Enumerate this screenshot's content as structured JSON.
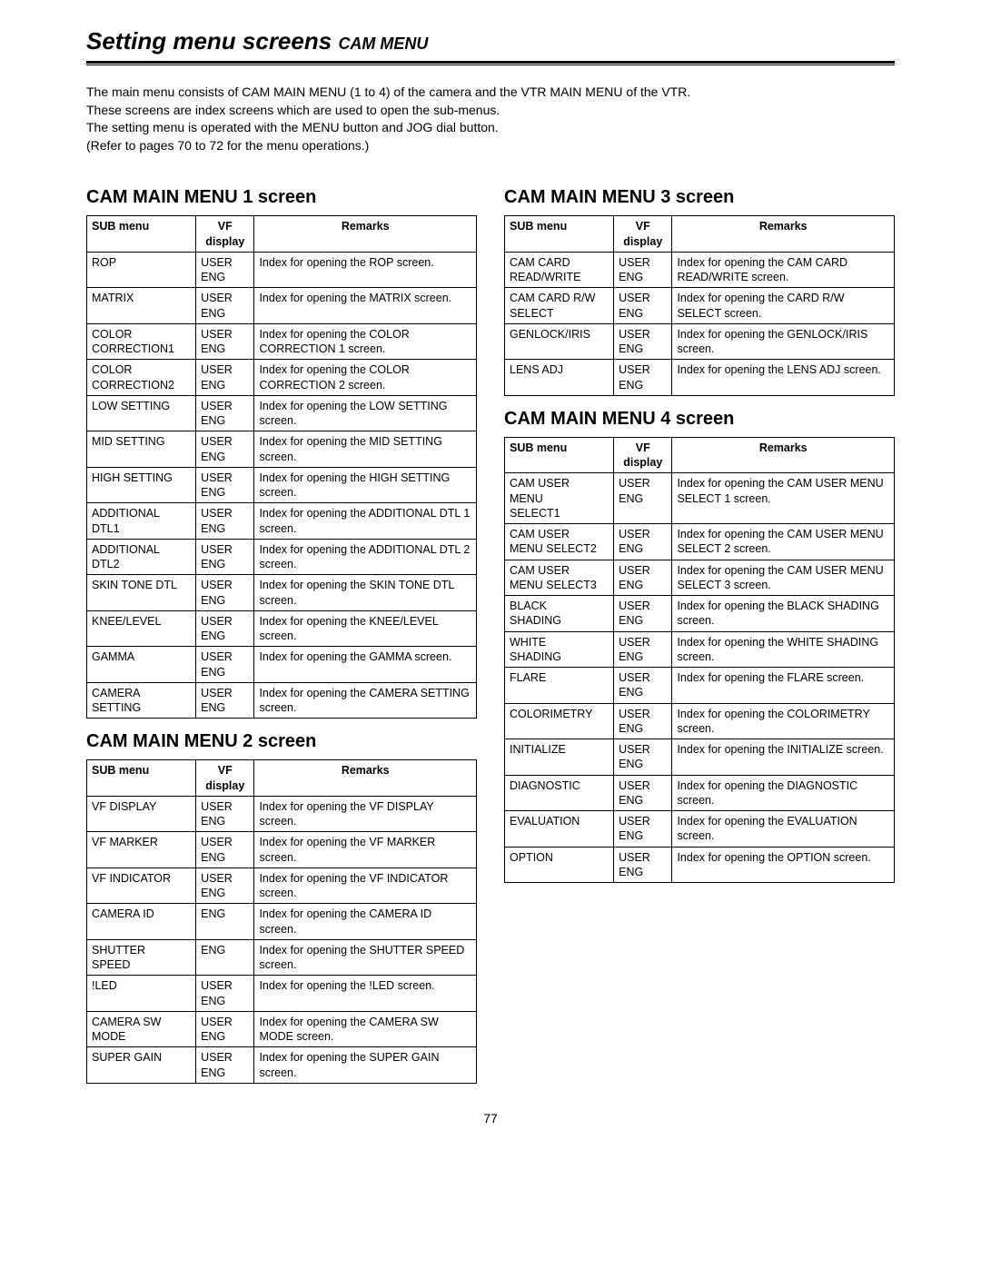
{
  "title_main": "Setting menu screens",
  "title_sub": "CAM MENU",
  "intro": [
    "The main menu consists of CAM MAIN MENU (1 to 4) of the camera and the VTR MAIN MENU of the VTR.",
    "These screens are index screens which are used to open the sub-menus.",
    "The setting menu is operated with the MENU button and JOG dial button.",
    "(Refer to pages 70 to 72 for the menu operations.)"
  ],
  "headers": {
    "sub": "SUB menu",
    "vf1": "VF",
    "vf2": "display",
    "remarks": "Remarks"
  },
  "sections": {
    "m1": {
      "title": "CAM MAIN MENU 1 screen",
      "rows": [
        {
          "sub": "ROP",
          "vf": "USER\nENG",
          "rem": "Index for opening the ROP screen."
        },
        {
          "sub": "MATRIX",
          "vf": "USER\nENG",
          "rem": "Index for opening the MATRIX screen."
        },
        {
          "sub": "COLOR\nCORRECTION1",
          "vf": "USER\nENG",
          "rem": "Index for opening the COLOR CORRECTION 1 screen."
        },
        {
          "sub": "COLOR\nCORRECTION2",
          "vf": "USER\nENG",
          "rem": "Index for opening the COLOR CORRECTION 2 screen."
        },
        {
          "sub": "LOW SETTING",
          "vf": "USER\nENG",
          "rem": "Index for opening the LOW SETTING screen."
        },
        {
          "sub": "MID SETTING",
          "vf": "USER\nENG",
          "rem": "Index for opening the MID SETTING screen."
        },
        {
          "sub": "HIGH SETTING",
          "vf": "USER\nENG",
          "rem": "Index for opening the HIGH SETTING screen."
        },
        {
          "sub": "ADDITIONAL\nDTL1",
          "vf": "USER\nENG",
          "rem": "Index for opening the ADDITIONAL DTL 1 screen."
        },
        {
          "sub": "ADDITIONAL\nDTL2",
          "vf": "USER\nENG",
          "rem": "Index for opening the ADDITIONAL DTL 2 screen."
        },
        {
          "sub": "SKIN TONE DTL",
          "vf": "USER\nENG",
          "rem": "Index for opening the SKIN TONE DTL screen."
        },
        {
          "sub": "KNEE/LEVEL",
          "vf": "USER\nENG",
          "rem": "Index for opening the KNEE/LEVEL screen."
        },
        {
          "sub": "GAMMA",
          "vf": "USER\nENG",
          "rem": "Index for opening the GAMMA screen."
        },
        {
          "sub": "CAMERA\nSETTING",
          "vf": "USER\nENG",
          "rem": "Index for opening the CAMERA SETTING screen."
        }
      ]
    },
    "m2": {
      "title": "CAM MAIN MENU 2 screen",
      "rows": [
        {
          "sub": "VF DISPLAY",
          "vf": "USER\nENG",
          "rem": "Index for opening the VF DISPLAY screen."
        },
        {
          "sub": "VF MARKER",
          "vf": "USER\nENG",
          "rem": "Index for opening the VF MARKER screen."
        },
        {
          "sub": "VF INDICATOR",
          "vf": "USER\nENG",
          "rem": "Index for opening the VF INDICATOR screen."
        },
        {
          "sub": "CAMERA ID",
          "vf": "ENG",
          "rem": "Index for opening the CAMERA ID screen."
        },
        {
          "sub": "SHUTTER\nSPEED",
          "vf": "ENG",
          "rem": "Index for opening the SHUTTER SPEED screen."
        },
        {
          "sub": "!LED",
          "vf": "USER\nENG",
          "rem": "Index for opening the !LED screen."
        },
        {
          "sub": "CAMERA SW\nMODE",
          "vf": "USER\nENG",
          "rem": "Index for opening the CAMERA SW MODE screen."
        },
        {
          "sub": "SUPER GAIN",
          "vf": "USER\nENG",
          "rem": "Index for opening the SUPER GAIN screen."
        }
      ]
    },
    "m3": {
      "title": "CAM MAIN MENU 3 screen",
      "rows": [
        {
          "sub": "CAM CARD\nREAD/WRITE",
          "vf": "USER\nENG",
          "rem": "Index for opening the CAM CARD READ/WRITE screen."
        },
        {
          "sub": "CAM CARD R/W\nSELECT",
          "vf": "USER\nENG",
          "rem": "Index for opening the CARD R/W SELECT screen."
        },
        {
          "sub": "GENLOCK/IRIS",
          "vf": "USER\nENG",
          "rem": "Index for opening the GENLOCK/IRIS screen."
        },
        {
          "sub": "LENS ADJ",
          "vf": "USER\nENG",
          "rem": "Index for opening the LENS ADJ screen."
        }
      ]
    },
    "m4": {
      "title": "CAM MAIN MENU 4 screen",
      "rows": [
        {
          "sub": "CAM USER\nMENU\nSELECT1",
          "vf": "USER\nENG",
          "rem": "Index for opening the CAM USER MENU SELECT 1 screen."
        },
        {
          "sub": "CAM USER\nMENU SELECT2",
          "vf": "USER\nENG",
          "rem": "Index for opening the CAM USER MENU SELECT 2 screen."
        },
        {
          "sub": "CAM USER\nMENU SELECT3",
          "vf": "USER\nENG",
          "rem": "Index for opening the CAM USER MENU SELECT 3 screen."
        },
        {
          "sub": "BLACK\nSHADING",
          "vf": "USER\nENG",
          "rem": "Index for opening the BLACK SHADING screen."
        },
        {
          "sub": "WHITE\nSHADING",
          "vf": "USER\nENG",
          "rem": "Index for opening the WHITE SHADING screen."
        },
        {
          "sub": "FLARE",
          "vf": "USER\nENG",
          "rem": "Index for opening the FLARE screen."
        },
        {
          "sub": "COLORIMETRY",
          "vf": "USER\nENG",
          "rem": "Index for opening the COLORIMETRY screen."
        },
        {
          "sub": "INITIALIZE",
          "vf": "USER\nENG",
          "rem": "Index for opening the INITIALIZE screen."
        },
        {
          "sub": "DIAGNOSTIC",
          "vf": "USER\nENG",
          "rem": "Index for opening the DIAGNOSTIC screen."
        },
        {
          "sub": "EVALUATION",
          "vf": "USER\nENG",
          "rem": "Index for opening the EVALUATION screen."
        },
        {
          "sub": "OPTION",
          "vf": "USER\nENG",
          "rem": "Index for opening the OPTION screen."
        }
      ]
    }
  },
  "page_number": "77"
}
